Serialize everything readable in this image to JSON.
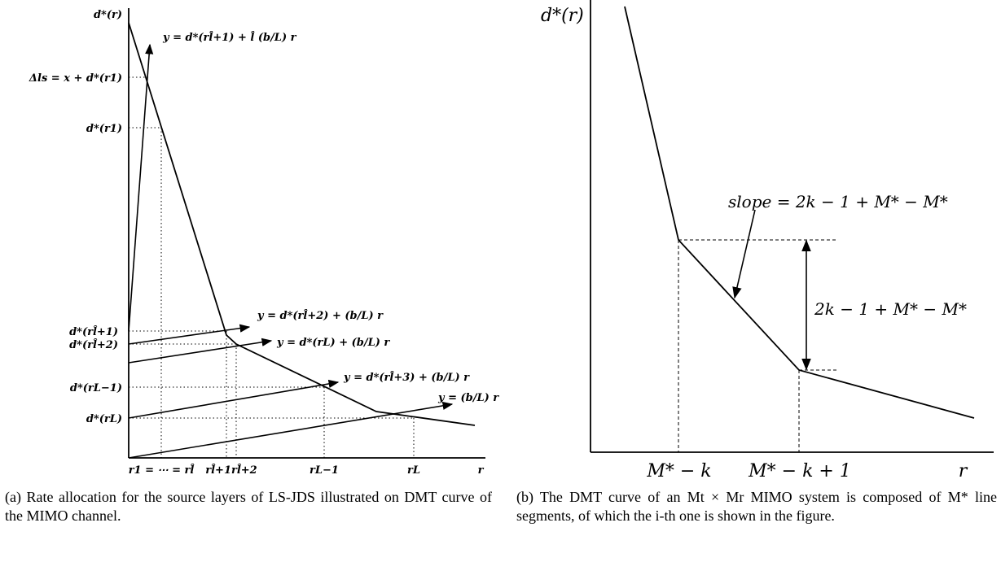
{
  "figure_a": {
    "y_labels": {
      "d_r": "d*(r)",
      "delta": "Δls = x + d*(r1)",
      "d_r1": "d*(r1)",
      "d_rl1": "d*(rl̂+1)",
      "d_rl2": "d*(rl̂+2)",
      "d_rL1": "d*(rL−1)",
      "d_rL": "d*(rL)"
    },
    "x_labels": {
      "r1_eq": "r1 = ⋯ = rl̂",
      "rl12": "rl̂+1rl̂+2",
      "rL1": "rL−1",
      "rL": "rL",
      "r": "r"
    },
    "line_labels": {
      "steep": "y = d*(rl̂+1) + l̂ (b/L) r",
      "rl2": "y = d*(rl̂+2) + (b/L) r",
      "rL": "y = d*(rL) + (b/L) r",
      "rl3": "y = d*(rl̂+3) + (b/L) r",
      "base": "y = (b/L) r"
    },
    "caption": "(a) Rate allocation for the source layers of LS-JDS illustrated on DMT curve of the MIMO channel."
  },
  "figure_b": {
    "ylabel": "d*(r)",
    "xlabel": "r",
    "tick_left": "M* − k",
    "tick_right": "M* − k + 1",
    "slope_label": "slope = 2k − 1 + M* − M*",
    "height_label": "2k − 1 + M* − M*",
    "caption": "(b) The DMT curve of an Mt × Mr MIMO system is composed of M* line segments, of which the i-th one is shown in the figure."
  }
}
